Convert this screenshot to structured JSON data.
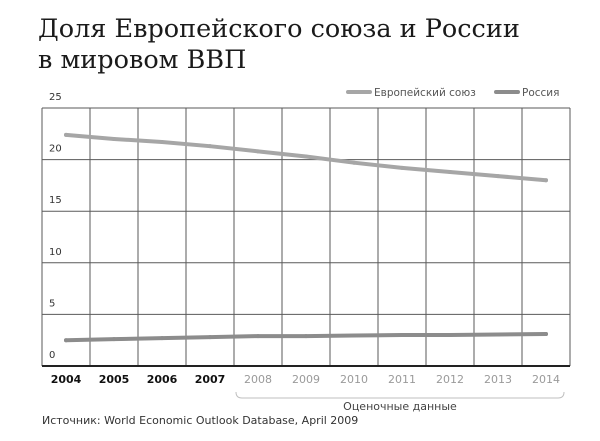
{
  "chart_data": {
    "type": "line",
    "title_line1": "Доля Европейского союза и России",
    "title_line2": "в мировом ВВП",
    "source": "Источник: World Economic Outlook Database, April 2009",
    "x": [
      "2004",
      "2005",
      "2006",
      "2007",
      "2008",
      "2009",
      "2010",
      "2011",
      "2012",
      "2013",
      "2014"
    ],
    "estimated_from": "2008",
    "estimated_label": "Оценочные данные",
    "ylim": [
      0,
      25
    ],
    "yticks": [
      "25",
      "20",
      "15",
      "10",
      "5",
      "0"
    ],
    "grid": true,
    "legend_position": "top-right",
    "series": [
      {
        "name": "Европейский союз",
        "color": "#a6a6a6",
        "values": [
          22.4,
          22.0,
          21.7,
          21.3,
          20.8,
          20.3,
          19.7,
          19.2,
          18.8,
          18.4,
          18.0
        ]
      },
      {
        "name": "Россия",
        "color": "#8c8c8c",
        "values": [
          2.5,
          2.6,
          2.7,
          2.8,
          2.9,
          2.9,
          2.95,
          3.0,
          3.0,
          3.05,
          3.1
        ]
      }
    ]
  }
}
